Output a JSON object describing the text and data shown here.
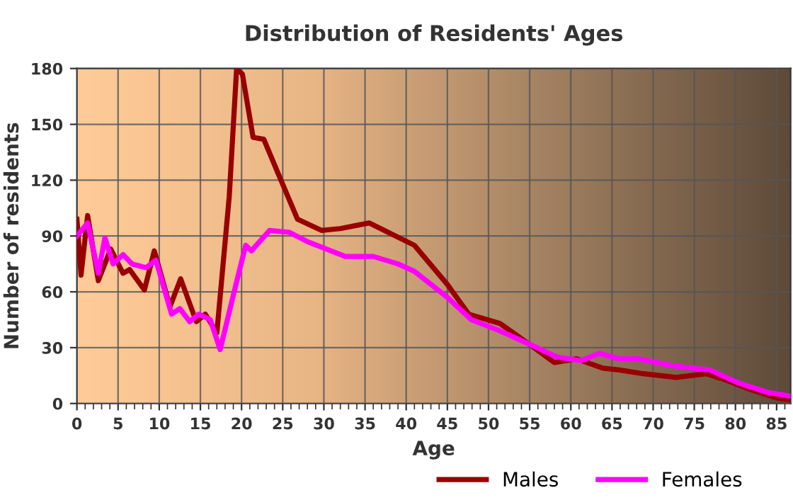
{
  "chart_data": {
    "type": "line",
    "title": "Distribution of Residents' Ages",
    "xlabel": "Age",
    "ylabel": "Number of residents",
    "xlim": [
      0,
      86.7
    ],
    "xticks": [
      0,
      5,
      10,
      15,
      20,
      25,
      30,
      35,
      40,
      45,
      50,
      55,
      60,
      65,
      70,
      75,
      80,
      85
    ],
    "ylim": [
      0,
      180
    ],
    "yticks": [
      0,
      30,
      60,
      90,
      120,
      150,
      180
    ],
    "grid": true,
    "legend": "bottom",
    "marker": "none",
    "line_style": "solid",
    "series": [
      {
        "name": "Males",
        "color": "#990000",
        "x": [
          0,
          0.5,
          1.3,
          2.6,
          4.1,
          5.6,
          6.4,
          8.2,
          9.4,
          11.3,
          12.6,
          14.5,
          15.6,
          17,
          18.5,
          19.4,
          20.1,
          21.4,
          22.7,
          24.5,
          26.8,
          29.7,
          32,
          35.5,
          37.8,
          41,
          45,
          47.6,
          51.4,
          54.9,
          58,
          60.7,
          63.9,
          65.9,
          68.8,
          72.8,
          76.5,
          78.6,
          81.5,
          85,
          86.7
        ],
        "values": [
          99,
          69,
          101,
          66,
          83,
          70,
          72,
          61,
          82,
          52,
          67,
          44,
          48,
          38,
          111,
          180,
          177,
          143,
          142,
          123,
          99,
          93,
          94,
          97,
          92,
          85,
          64,
          48,
          43,
          32,
          22,
          24,
          19,
          18,
          16,
          14,
          16,
          13,
          8,
          3,
          2
        ]
      },
      {
        "name": "Females",
        "color": "#ff00ff",
        "x": [
          0,
          1.3,
          2.6,
          3.4,
          4.4,
          5.6,
          6.7,
          8.4,
          9.6,
          11.5,
          12.5,
          13.7,
          14.8,
          16.2,
          17.4,
          19.1,
          20.5,
          21.2,
          23.4,
          25.8,
          28,
          30.3,
          32.6,
          36,
          39,
          41,
          45,
          47.9,
          51.4,
          54.9,
          58.3,
          61.2,
          63.5,
          65.8,
          68.2,
          72.8,
          76.9,
          80.4,
          83.9,
          86.7
        ],
        "values": [
          90,
          97,
          70,
          89,
          75,
          80,
          75,
          73,
          77,
          48,
          51,
          44,
          48,
          45,
          29,
          60,
          85,
          82,
          93,
          92,
          87,
          83,
          79,
          79,
          75,
          71,
          57,
          45,
          39,
          32,
          25,
          23,
          27,
          24,
          24,
          20,
          18,
          11,
          6,
          4
        ]
      }
    ]
  }
}
